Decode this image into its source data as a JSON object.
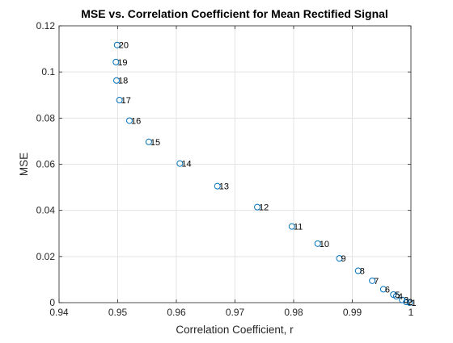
{
  "chart_data": {
    "type": "scatter",
    "title": "MSE vs. Correlation Coefficient for Mean Rectified Signal",
    "xlabel": "Correlation Coefficient, r",
    "ylabel": "MSE",
    "xlim": [
      0.94,
      1.0
    ],
    "ylim": [
      0,
      0.12
    ],
    "xticks": [
      0.94,
      0.95,
      0.96,
      0.97,
      0.98,
      0.99,
      1.0
    ],
    "xtick_labels": [
      "0.94",
      "0.95",
      "0.96",
      "0.97",
      "0.98",
      "0.99",
      "1"
    ],
    "yticks": [
      0,
      0.02,
      0.04,
      0.06,
      0.08,
      0.1,
      0.12
    ],
    "ytick_labels": [
      "0",
      "0.02",
      "0.04",
      "0.06",
      "0.08",
      "0.1",
      "0.12"
    ],
    "grid": true,
    "marker_color": "#0072BD",
    "points": [
      {
        "label": "1",
        "x": 0.9998,
        "y": 0.0
      },
      {
        "label": "2",
        "x": 0.9992,
        "y": 0.0003
      },
      {
        "label": "3",
        "x": 0.9985,
        "y": 0.0012
      },
      {
        "label": "4",
        "x": 0.9975,
        "y": 0.0028
      },
      {
        "label": "5",
        "x": 0.997,
        "y": 0.0035
      },
      {
        "label": "6",
        "x": 0.9953,
        "y": 0.0058
      },
      {
        "label": "7",
        "x": 0.9934,
        "y": 0.0095
      },
      {
        "label": "8",
        "x": 0.991,
        "y": 0.0138
      },
      {
        "label": "9",
        "x": 0.9878,
        "y": 0.0192
      },
      {
        "label": "10",
        "x": 0.9841,
        "y": 0.0256
      },
      {
        "label": "11",
        "x": 0.9797,
        "y": 0.033
      },
      {
        "label": "12",
        "x": 0.9738,
        "y": 0.0414
      },
      {
        "label": "13",
        "x": 0.967,
        "y": 0.0505
      },
      {
        "label": "14",
        "x": 0.9606,
        "y": 0.0603
      },
      {
        "label": "15",
        "x": 0.9553,
        "y": 0.0697
      },
      {
        "label": "16",
        "x": 0.952,
        "y": 0.0789
      },
      {
        "label": "17",
        "x": 0.9503,
        "y": 0.0878
      },
      {
        "label": "18",
        "x": 0.9498,
        "y": 0.0963
      },
      {
        "label": "19",
        "x": 0.9497,
        "y": 0.1043
      },
      {
        "label": "20",
        "x": 0.9499,
        "y": 0.1117
      }
    ]
  }
}
